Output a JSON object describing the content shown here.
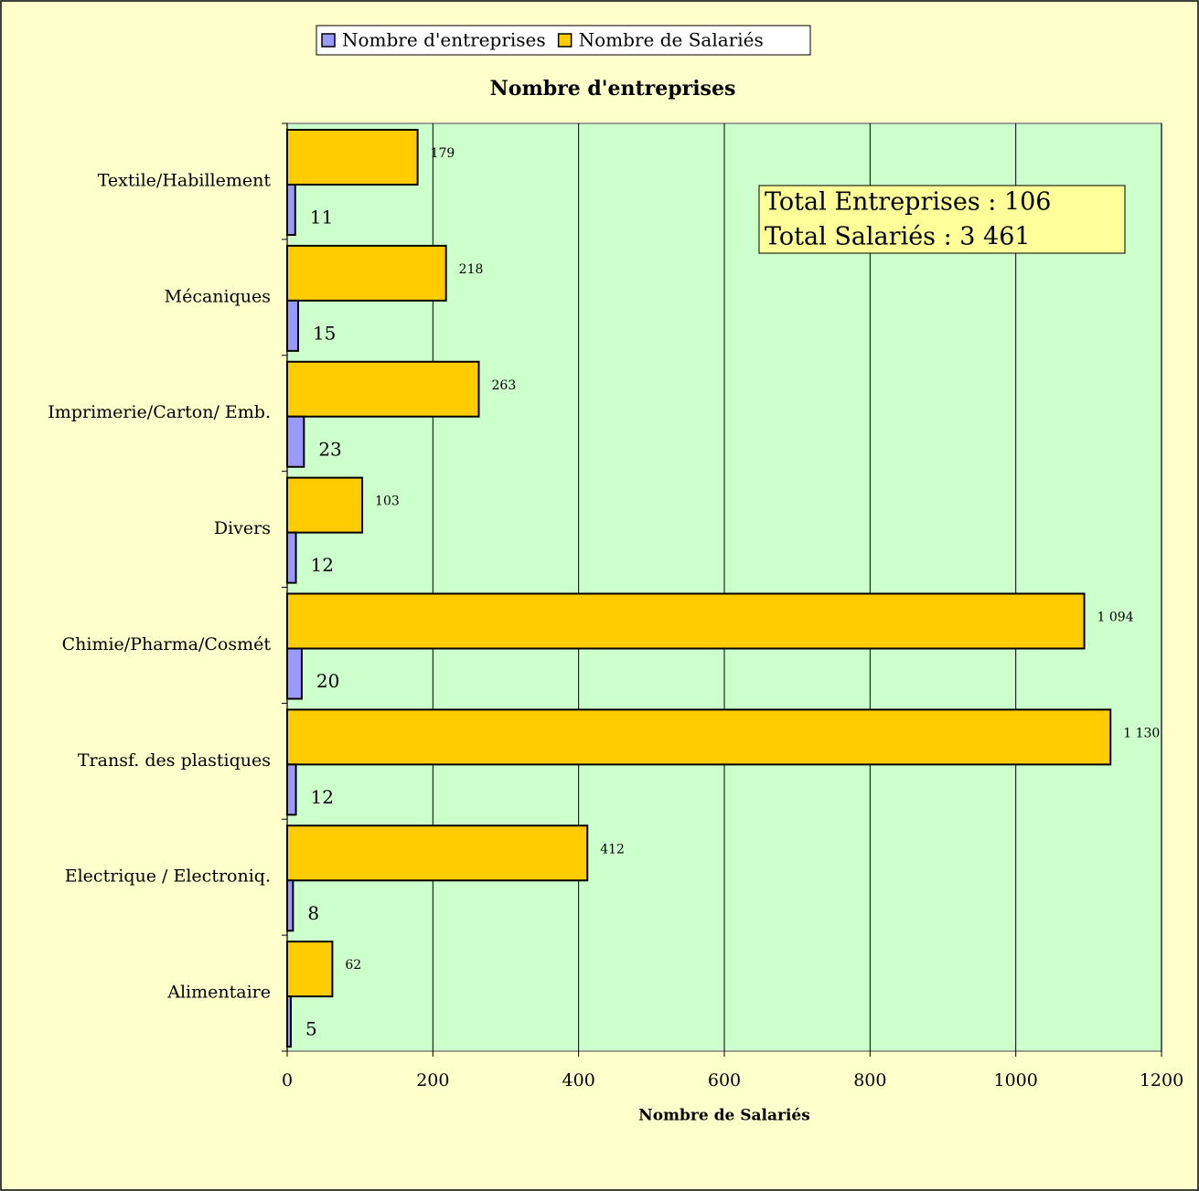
{
  "chart_data": {
    "type": "hbar",
    "title": "Nombre d'entreprises",
    "x_label": "Nombre de Salariés",
    "categories": [
      "Textile/Habillement",
      "Mécaniques",
      "Imprimerie/Carton/ Emb.",
      "Divers",
      "Chimie/Pharma/Cosmét",
      "Transf. des plastiques",
      "Electrique / Electroniq.",
      "Alimentaire"
    ],
    "series": [
      {
        "name": "Nombre d'entreprises",
        "color": "#9999ff",
        "values": [
          11,
          15,
          23,
          12,
          20,
          12,
          8,
          5
        ]
      },
      {
        "name": "Nombre de Salariés",
        "color": "#ffcc00",
        "values": [
          179,
          218,
          263,
          103,
          1094,
          1130,
          412,
          62
        ],
        "value_labels": [
          "179",
          "218",
          "263",
          "103",
          "1 094",
          "1 130",
          "412",
          "62"
        ]
      }
    ],
    "xlim": [
      0,
      1200
    ],
    "xticks": [
      0,
      200,
      400,
      600,
      800,
      1000,
      1200
    ],
    "grid": true,
    "legend": "top",
    "annotations": [
      "Total Entreprises : 106",
      "Total Salariés : 3 461"
    ]
  }
}
